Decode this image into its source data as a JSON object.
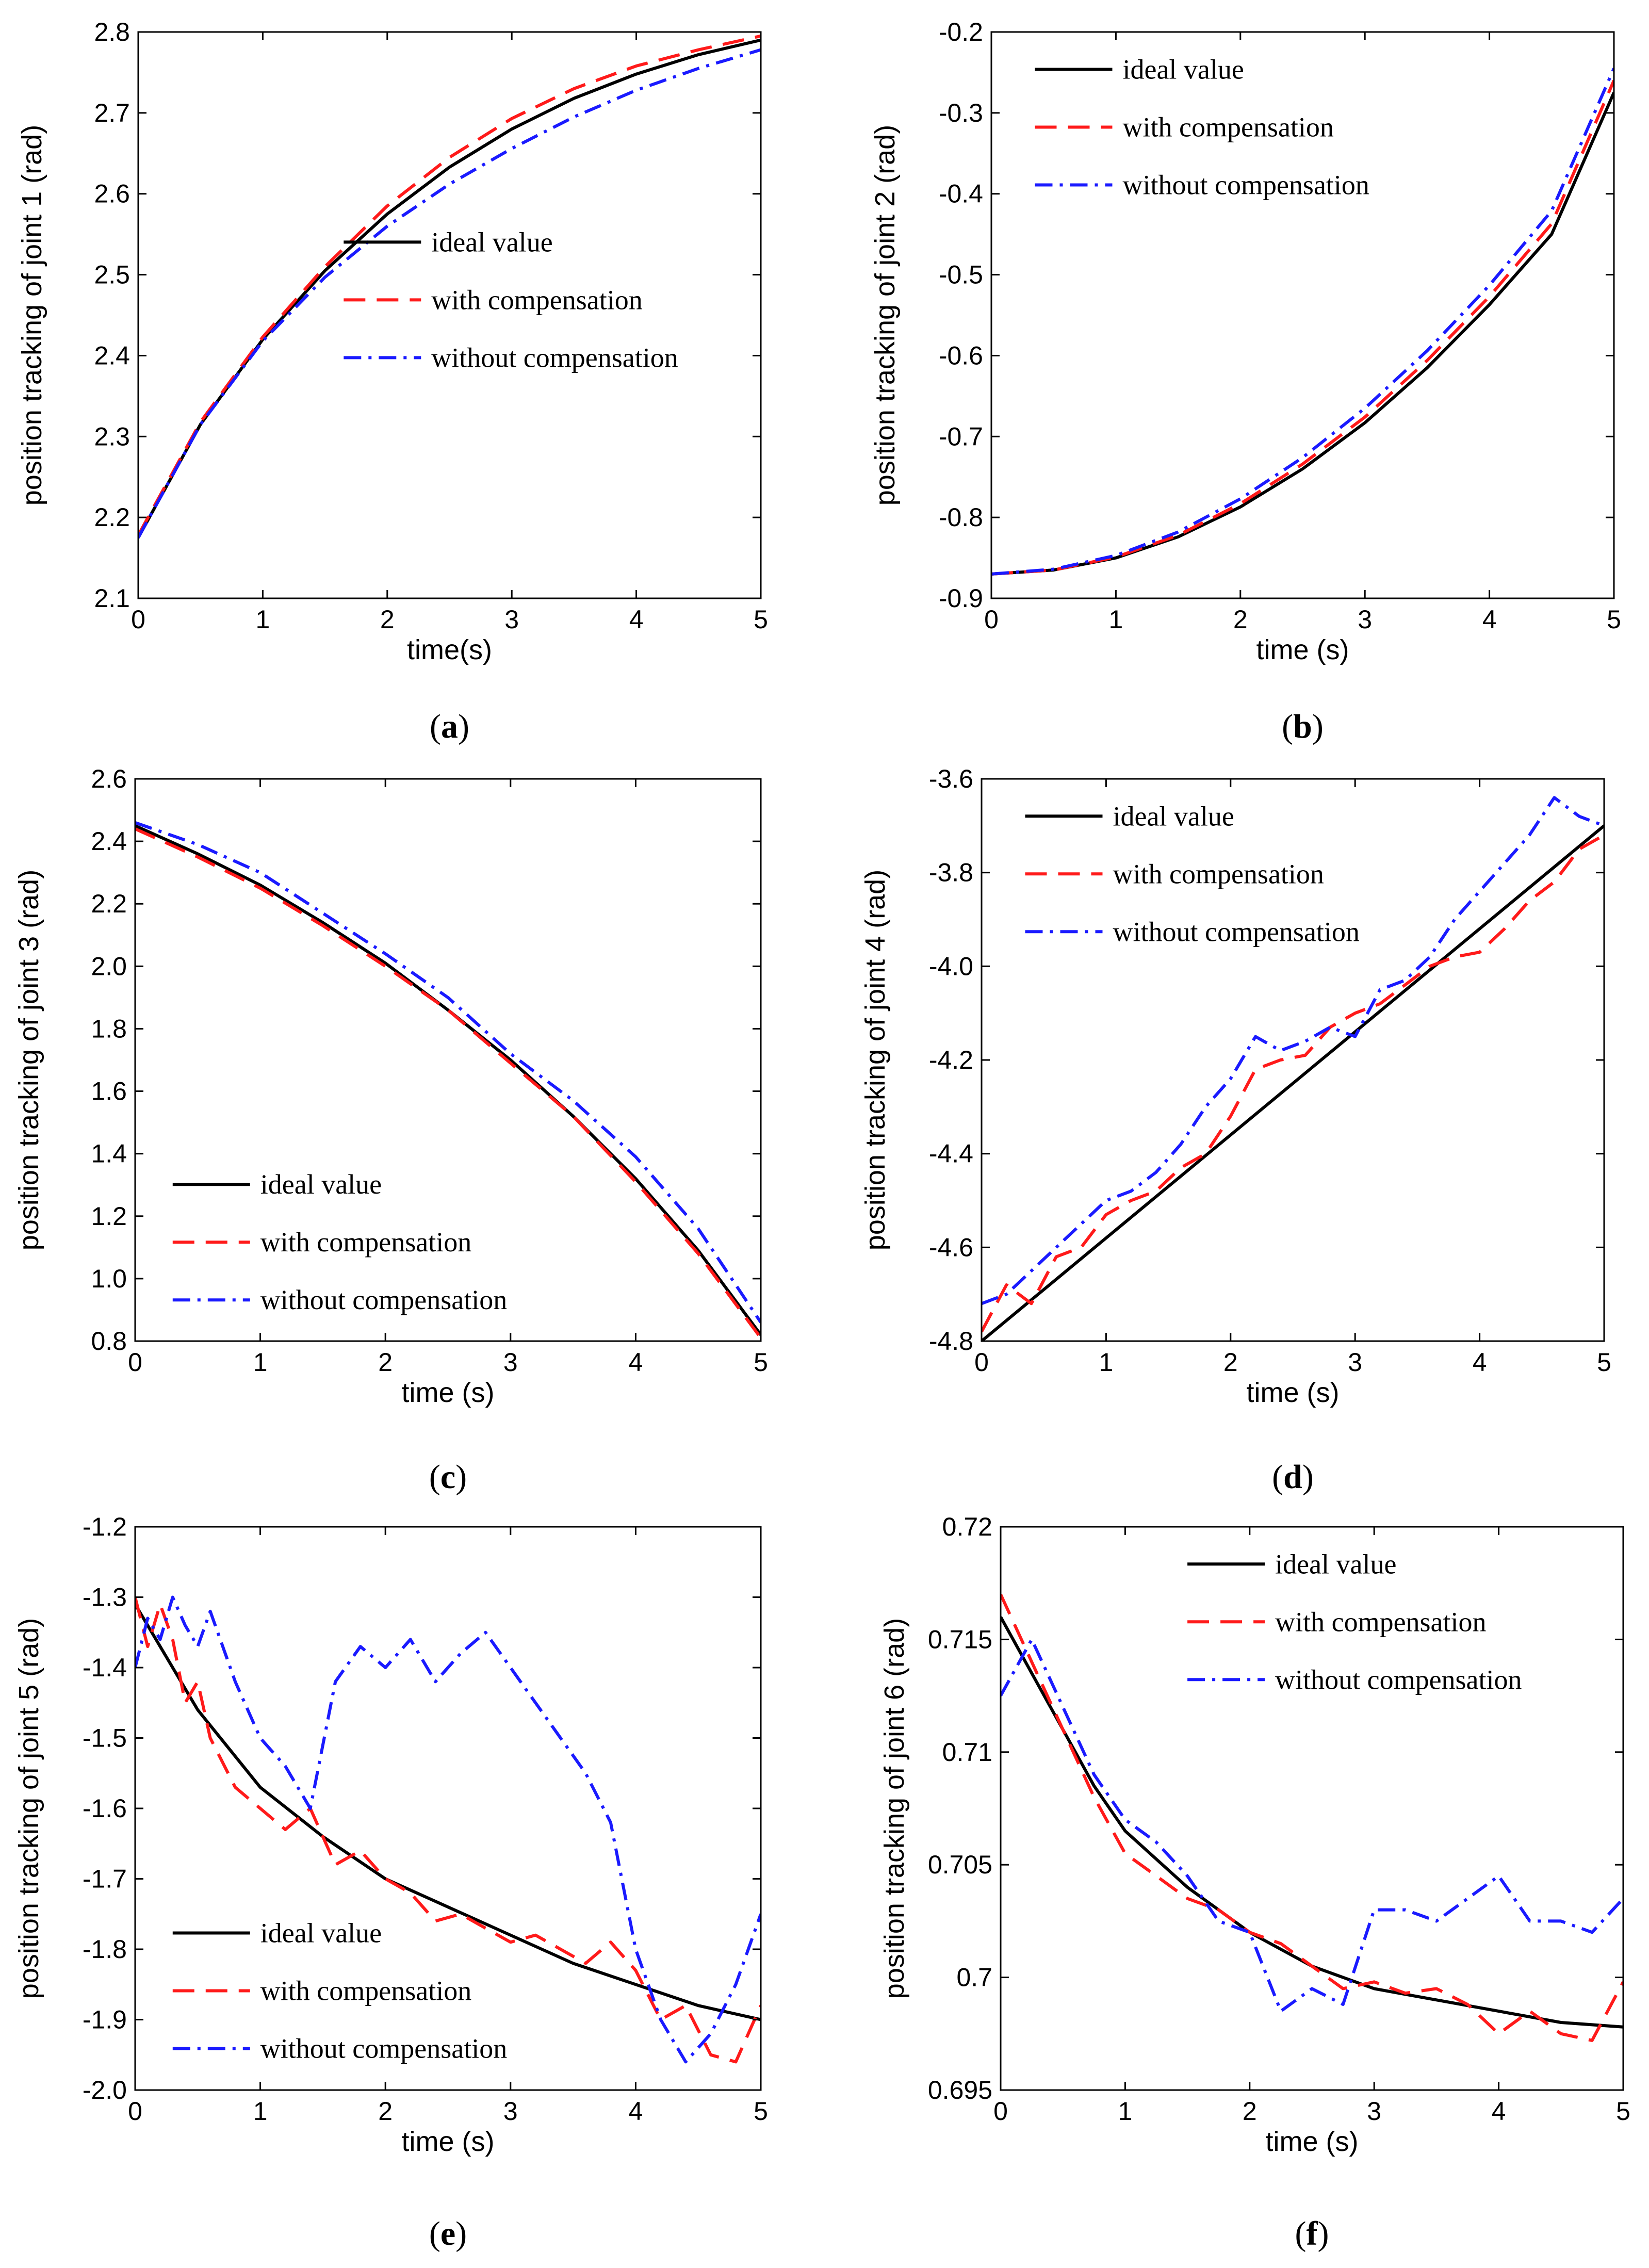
{
  "legend": {
    "ideal": "ideal value",
    "with": "with compensation",
    "without": "without compensation"
  },
  "colors": {
    "ideal": "#000000",
    "with": "#ff1a1a",
    "without": "#1a1aff"
  },
  "chart_data": [
    {
      "type": "line",
      "caption_letter": "a",
      "xlabel": "time(s)",
      "ylabel": "position tracking of joint 1 (rad)",
      "xlim": [
        0,
        5
      ],
      "ylim": [
        2.1,
        2.8
      ],
      "xticks": [
        0,
        1,
        2,
        3,
        4,
        5
      ],
      "yticks": [
        2.1,
        2.2,
        2.3,
        2.4,
        2.5,
        2.6,
        2.7,
        2.8
      ],
      "ytick_decimals": 1,
      "legend_position": "center-right",
      "series": [
        {
          "name": "ideal value",
          "x": [
            0,
            0.5,
            1,
            1.5,
            2,
            2.5,
            3,
            3.5,
            4,
            4.5,
            5
          ],
          "y": [
            2.175,
            2.315,
            2.42,
            2.505,
            2.575,
            2.633,
            2.68,
            2.718,
            2.748,
            2.772,
            2.79
          ]
        },
        {
          "name": "with compensation",
          "x": [
            0,
            0.5,
            1,
            1.5,
            2,
            2.5,
            3,
            3.5,
            4,
            4.5,
            5
          ],
          "y": [
            2.178,
            2.318,
            2.423,
            2.51,
            2.585,
            2.645,
            2.693,
            2.73,
            2.758,
            2.778,
            2.795
          ]
        },
        {
          "name": "without compensation",
          "x": [
            0,
            0.5,
            1,
            1.5,
            2,
            2.5,
            3,
            3.5,
            4,
            4.5,
            5
          ],
          "y": [
            2.175,
            2.315,
            2.418,
            2.497,
            2.56,
            2.612,
            2.656,
            2.695,
            2.728,
            2.755,
            2.778
          ]
        }
      ]
    },
    {
      "type": "line",
      "caption_letter": "b",
      "xlabel": "time (s)",
      "ylabel": "position tracking of joint 2 (rad)",
      "xlim": [
        0,
        5
      ],
      "ylim": [
        -0.9,
        -0.2
      ],
      "xticks": [
        0,
        1,
        2,
        3,
        4,
        5
      ],
      "yticks": [
        -0.9,
        -0.8,
        -0.7,
        -0.6,
        -0.5,
        -0.4,
        -0.3,
        -0.2
      ],
      "ytick_decimals": 1,
      "legend_position": "top-left",
      "series": [
        {
          "name": "ideal value",
          "x": [
            0,
            0.5,
            1,
            1.5,
            2,
            2.5,
            3,
            3.5,
            4,
            4.5,
            5
          ],
          "y": [
            -0.87,
            -0.865,
            -0.85,
            -0.824,
            -0.787,
            -0.74,
            -0.683,
            -0.615,
            -0.537,
            -0.45,
            -0.275
          ]
        },
        {
          "name": "with compensation",
          "x": [
            0,
            0.5,
            1,
            1.5,
            2,
            2.5,
            3,
            3.5,
            4,
            4.5,
            5
          ],
          "y": [
            -0.87,
            -0.865,
            -0.849,
            -0.822,
            -0.783,
            -0.734,
            -0.676,
            -0.606,
            -0.527,
            -0.437,
            -0.26
          ]
        },
        {
          "name": "without compensation",
          "x": [
            0,
            0.5,
            1,
            1.5,
            2,
            2.5,
            3,
            3.5,
            4,
            4.5,
            5
          ],
          "y": [
            -0.87,
            -0.864,
            -0.847,
            -0.818,
            -0.777,
            -0.726,
            -0.665,
            -0.594,
            -0.513,
            -0.421,
            -0.245
          ]
        }
      ]
    },
    {
      "type": "line",
      "caption_letter": "c",
      "xlabel": "time (s)",
      "ylabel": "position tracking of joint 3 (rad)",
      "xlim": [
        0,
        5
      ],
      "ylim": [
        0.8,
        2.6
      ],
      "xticks": [
        0,
        1,
        2,
        3,
        4,
        5
      ],
      "yticks": [
        0.8,
        1.0,
        1.2,
        1.4,
        1.6,
        1.8,
        2.0,
        2.2,
        2.4,
        2.6
      ],
      "ytick_decimals": 1,
      "legend_position": "bottom-left",
      "series": [
        {
          "name": "ideal value",
          "x": [
            0,
            0.5,
            1,
            1.5,
            2,
            2.5,
            3,
            3.5,
            4,
            4.5,
            5
          ],
          "y": [
            2.45,
            2.36,
            2.26,
            2.14,
            2.01,
            1.86,
            1.7,
            1.52,
            1.32,
            1.09,
            0.82
          ]
        },
        {
          "name": "with compensation",
          "x": [
            0,
            0.5,
            1,
            1.5,
            2,
            2.5,
            3,
            3.5,
            4,
            4.5,
            5
          ],
          "y": [
            2.44,
            2.35,
            2.25,
            2.13,
            2.0,
            1.86,
            1.69,
            1.52,
            1.31,
            1.08,
            0.81
          ]
        },
        {
          "name": "without compensation",
          "x": [
            0,
            0.5,
            1,
            1.5,
            2,
            2.5,
            3,
            3.5,
            4,
            4.5,
            5
          ],
          "y": [
            2.46,
            2.39,
            2.3,
            2.17,
            2.04,
            1.9,
            1.72,
            1.57,
            1.39,
            1.16,
            0.86
          ]
        }
      ]
    },
    {
      "type": "line",
      "caption_letter": "d",
      "xlabel": "time (s)",
      "ylabel": "position tracking of joint 4 (rad)",
      "xlim": [
        0,
        5
      ],
      "ylim": [
        -4.8,
        -3.6
      ],
      "xticks": [
        0,
        1,
        2,
        3,
        4,
        5
      ],
      "yticks": [
        -4.8,
        -4.6,
        -4.4,
        -4.2,
        -4.0,
        -3.8,
        -3.6
      ],
      "ytick_decimals": 1,
      "legend_position": "top-left",
      "series": [
        {
          "name": "ideal value",
          "x": [
            0,
            5
          ],
          "y": [
            -4.8,
            -3.7
          ]
        },
        {
          "name": "with compensation",
          "x": [
            0,
            0.2,
            0.4,
            0.6,
            0.8,
            1.0,
            1.2,
            1.4,
            1.6,
            1.8,
            2.0,
            2.2,
            2.4,
            2.6,
            2.8,
            3.0,
            3.2,
            3.4,
            3.6,
            3.8,
            4.0,
            4.2,
            4.4,
            4.6,
            4.8,
            5.0
          ],
          "y": [
            -4.78,
            -4.68,
            -4.72,
            -4.62,
            -4.6,
            -4.53,
            -4.5,
            -4.48,
            -4.43,
            -4.4,
            -4.32,
            -4.22,
            -4.2,
            -4.19,
            -4.13,
            -4.1,
            -4.08,
            -4.04,
            -4.0,
            -3.98,
            -3.97,
            -3.92,
            -3.86,
            -3.82,
            -3.75,
            -3.72
          ]
        },
        {
          "name": "without compensation",
          "x": [
            0,
            0.2,
            0.4,
            0.6,
            0.8,
            1.0,
            1.2,
            1.4,
            1.6,
            1.8,
            2.0,
            2.2,
            2.4,
            2.6,
            2.8,
            3.0,
            3.2,
            3.4,
            3.6,
            3.8,
            4.0,
            4.2,
            4.4,
            4.6,
            4.8,
            5.0
          ],
          "y": [
            -4.72,
            -4.7,
            -4.65,
            -4.6,
            -4.55,
            -4.5,
            -4.48,
            -4.44,
            -4.38,
            -4.3,
            -4.24,
            -4.15,
            -4.18,
            -4.16,
            -4.13,
            -4.15,
            -4.05,
            -4.03,
            -3.98,
            -3.9,
            -3.84,
            -3.78,
            -3.72,
            -3.64,
            -3.68,
            -3.7
          ]
        }
      ]
    },
    {
      "type": "line",
      "caption_letter": "e",
      "xlabel": "time (s)",
      "ylabel": "position tracking of joint 5 (rad)",
      "xlim": [
        0,
        5
      ],
      "ylim": [
        -2.0,
        -1.2
      ],
      "xticks": [
        0,
        1,
        2,
        3,
        4,
        5
      ],
      "yticks": [
        -2.0,
        -1.9,
        -1.8,
        -1.7,
        -1.6,
        -1.5,
        -1.4,
        -1.3,
        -1.2
      ],
      "ytick_decimals": 1,
      "legend_position": "bottom-left",
      "series": [
        {
          "name": "ideal value",
          "x": [
            0,
            0.5,
            1,
            1.5,
            2,
            2.5,
            3,
            3.5,
            4,
            4.5,
            5
          ],
          "y": [
            -1.31,
            -1.46,
            -1.57,
            -1.64,
            -1.7,
            -1.74,
            -1.78,
            -1.82,
            -1.85,
            -1.88,
            -1.9
          ]
        },
        {
          "name": "with compensation",
          "x": [
            0,
            0.1,
            0.2,
            0.3,
            0.4,
            0.5,
            0.6,
            0.8,
            1.0,
            1.2,
            1.4,
            1.6,
            1.8,
            2.0,
            2.2,
            2.4,
            2.6,
            2.8,
            3.0,
            3.2,
            3.4,
            3.6,
            3.8,
            4.0,
            4.2,
            4.4,
            4.6,
            4.8,
            5.0
          ],
          "y": [
            -1.3,
            -1.37,
            -1.31,
            -1.36,
            -1.45,
            -1.42,
            -1.5,
            -1.57,
            -1.6,
            -1.63,
            -1.6,
            -1.68,
            -1.66,
            -1.7,
            -1.72,
            -1.76,
            -1.75,
            -1.77,
            -1.79,
            -1.78,
            -1.8,
            -1.82,
            -1.79,
            -1.83,
            -1.9,
            -1.88,
            -1.95,
            -1.96,
            -1.88
          ]
        },
        {
          "name": "without compensation",
          "x": [
            0,
            0.1,
            0.2,
            0.3,
            0.4,
            0.5,
            0.6,
            0.8,
            1.0,
            1.2,
            1.4,
            1.6,
            1.8,
            2.0,
            2.2,
            2.4,
            2.6,
            2.8,
            3.0,
            3.2,
            3.4,
            3.6,
            3.8,
            4.0,
            4.2,
            4.4,
            4.6,
            4.8,
            5.0
          ],
          "y": [
            -1.4,
            -1.33,
            -1.36,
            -1.3,
            -1.34,
            -1.37,
            -1.32,
            -1.42,
            -1.5,
            -1.54,
            -1.6,
            -1.42,
            -1.37,
            -1.4,
            -1.36,
            -1.42,
            -1.38,
            -1.35,
            -1.4,
            -1.45,
            -1.5,
            -1.55,
            -1.62,
            -1.8,
            -1.9,
            -1.96,
            -1.92,
            -1.85,
            -1.75
          ]
        }
      ]
    },
    {
      "type": "line",
      "caption_letter": "f",
      "xlabel": "time (s)",
      "ylabel": "position tracking of joint 6  (rad)",
      "xlim": [
        0,
        5
      ],
      "ylim": [
        0.695,
        0.72
      ],
      "xticks": [
        0,
        1,
        2,
        3,
        4,
        5
      ],
      "yticks": [
        0.695,
        0.7,
        0.705,
        0.71,
        0.715,
        0.72
      ],
      "ytick_labels": [
        "0.695",
        "0.7",
        "0.705",
        "0.71",
        "0.715",
        "0.72"
      ],
      "legend_position": "top-right",
      "series": [
        {
          "name": "ideal value",
          "x": [
            0,
            0.25,
            0.5,
            0.75,
            1,
            1.5,
            2,
            2.5,
            3,
            3.5,
            4,
            4.5,
            5
          ],
          "y": [
            0.716,
            0.7135,
            0.711,
            0.7085,
            0.7065,
            0.704,
            0.702,
            0.7005,
            0.6995,
            0.699,
            0.6985,
            0.698,
            0.6978
          ]
        },
        {
          "name": "with compensation",
          "x": [
            0,
            0.25,
            0.5,
            0.75,
            1,
            1.25,
            1.5,
            1.75,
            2,
            2.25,
            2.5,
            2.75,
            3,
            3.25,
            3.5,
            3.75,
            4,
            4.25,
            4.5,
            4.75,
            5
          ],
          "y": [
            0.717,
            0.714,
            0.711,
            0.708,
            0.7055,
            0.7045,
            0.7035,
            0.703,
            0.702,
            0.7015,
            0.7005,
            0.6995,
            0.6998,
            0.6993,
            0.6995,
            0.6988,
            0.6975,
            0.6985,
            0.6975,
            0.6972,
            0.6998
          ]
        },
        {
          "name": "without compensation",
          "x": [
            0,
            0.25,
            0.5,
            0.75,
            1,
            1.25,
            1.5,
            1.75,
            2,
            2.25,
            2.5,
            2.75,
            3,
            3.25,
            3.5,
            3.75,
            4,
            4.25,
            4.5,
            4.75,
            5
          ],
          "y": [
            0.7125,
            0.715,
            0.712,
            0.709,
            0.707,
            0.706,
            0.7045,
            0.7025,
            0.702,
            0.6985,
            0.6995,
            0.6988,
            0.703,
            0.703,
            0.7025,
            0.7035,
            0.7045,
            0.7025,
            0.7025,
            0.702,
            0.7035
          ]
        }
      ]
    }
  ]
}
